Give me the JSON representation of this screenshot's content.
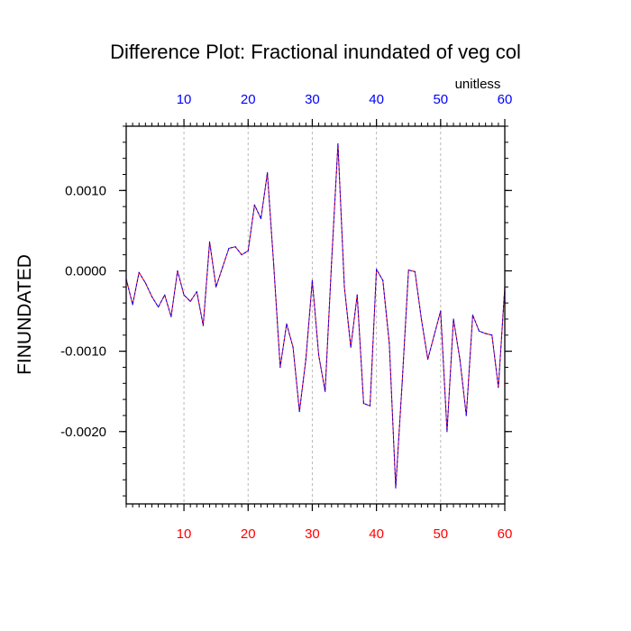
{
  "chart_data": {
    "type": "line",
    "title": "Difference Plot: Fractional inundated of veg col",
    "ylabel": "FINUNDATED",
    "units_label": "unitless",
    "xlim": [
      1,
      60
    ],
    "ylim": [
      -0.0029,
      0.0018
    ],
    "x_ticks": [
      10,
      20,
      30,
      40,
      50,
      60
    ],
    "x_tick_labels": [
      "10",
      "20",
      "30",
      "40",
      "50",
      "60"
    ],
    "y_ticks": [
      0.001,
      0.0,
      -0.001,
      -0.002
    ],
    "y_tick_labels": [
      "0.0010",
      "0.0000",
      "-0.0010",
      "-0.0020"
    ],
    "bottom_tick_color": "#ff0000",
    "top_tick_color": "#0000ff",
    "grid_x": true,
    "series": [
      {
        "color_a": "#ff0000",
        "color_b": "#0000ff",
        "x": [
          1,
          2,
          3,
          4,
          5,
          6,
          7,
          8,
          9,
          10,
          11,
          12,
          13,
          14,
          15,
          16,
          17,
          18,
          19,
          20,
          21,
          22,
          23,
          24,
          25,
          26,
          27,
          28,
          29,
          30,
          31,
          32,
          33,
          34,
          35,
          36,
          37,
          38,
          39,
          40,
          41,
          42,
          43,
          44,
          45,
          46,
          47,
          48,
          49,
          50,
          51,
          52,
          53,
          54,
          55,
          56,
          57,
          58,
          59,
          60
        ],
        "y": [
          -0.0001,
          -0.00042,
          -2e-05,
          -0.00015,
          -0.00032,
          -0.00045,
          -0.0003,
          -0.00057,
          0.0,
          -0.0003,
          -0.00038,
          -0.00026,
          -0.00068,
          0.00036,
          -0.0002,
          4e-05,
          0.00028,
          0.0003,
          0.0002,
          0.00025,
          0.00082,
          0.00065,
          0.00122,
          6e-05,
          -0.0012,
          -0.00066,
          -0.00095,
          -0.00175,
          -0.0011,
          -0.00012,
          -0.00105,
          -0.0015,
          0.0001,
          0.00158,
          -0.0002,
          -0.00095,
          -0.0003,
          -0.00165,
          -0.00168,
          2e-05,
          -0.00012,
          -0.0009,
          -0.0027,
          -0.0014,
          1e-05,
          -1e-05,
          -0.0006,
          -0.0011,
          -0.0008,
          -0.0005,
          -0.002,
          -0.0006,
          -0.0011,
          -0.0018,
          -0.00055,
          -0.00075,
          -0.00078,
          -0.0008,
          -0.00145,
          -0.0002
        ]
      }
    ]
  }
}
